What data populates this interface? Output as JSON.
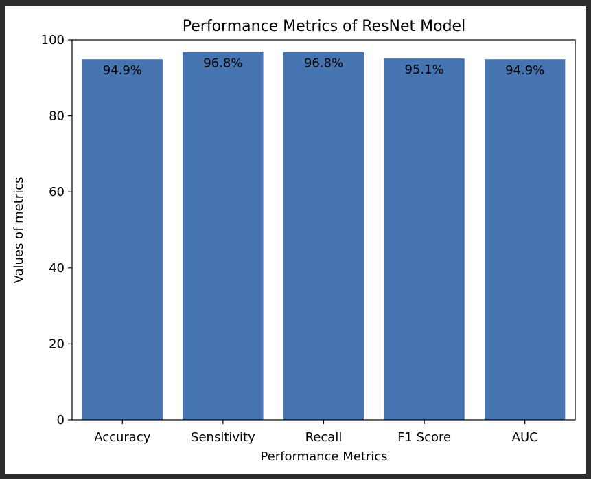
{
  "chart_data": {
    "type": "bar",
    "title": "Performance Metrics of ResNet Model",
    "xlabel": "Performance Metrics",
    "ylabel": "Values of metrics",
    "categories": [
      "Accuracy",
      "Sensitivity",
      "Recall",
      "F1 Score",
      "AUC"
    ],
    "values": [
      94.9,
      96.8,
      96.8,
      95.1,
      94.9
    ],
    "data_labels": [
      "94.9%",
      "96.8%",
      "96.8%",
      "95.1%",
      "94.9%"
    ],
    "ylim": [
      0,
      100
    ],
    "yticks": [
      0,
      20,
      40,
      60,
      80,
      100
    ],
    "ytick_labels": [
      "0",
      "20",
      "40",
      "60",
      "80",
      "100"
    ],
    "grid": false,
    "bar_color": "#4674b1"
  }
}
